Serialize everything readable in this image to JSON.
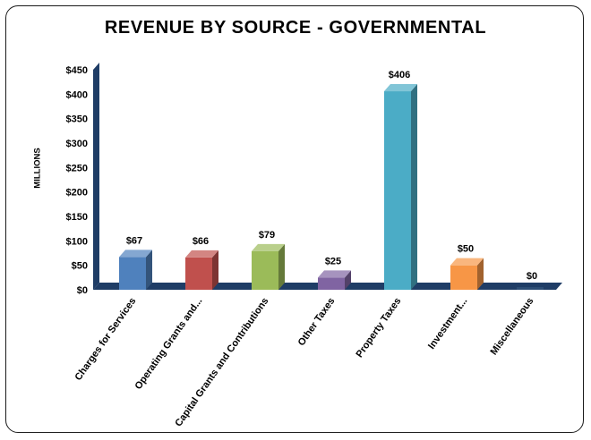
{
  "chart_data": {
    "type": "bar",
    "title": "REVENUE BY SOURCE - GOVERNMENTAL",
    "ylabel": "MILLIONS",
    "xlabel": "",
    "categories": [
      "Charges for Services",
      "Operating Grants and...",
      "Capital Grants and Contributions",
      "Other Taxes",
      "Property Taxes",
      "Investment...",
      "Miscellaneous"
    ],
    "values": [
      67,
      66,
      79,
      25,
      406,
      50,
      0
    ],
    "value_labels": [
      "$67",
      "$66",
      "$79",
      "$25",
      "$406",
      "$50",
      "$0"
    ],
    "colors": [
      "#4f81bd",
      "#c0504d",
      "#9bbb59",
      "#8064a2",
      "#4bacc6",
      "#f79646",
      "#2c4d75"
    ],
    "ylim": [
      0,
      450
    ],
    "yticks": [
      0,
      50,
      100,
      150,
      200,
      250,
      300,
      350,
      400,
      450
    ],
    "ytick_labels": [
      "$0",
      "$50",
      "$100",
      "$150",
      "$200",
      "$250",
      "$300",
      "$350",
      "$400",
      "$450"
    ],
    "grid": false,
    "legend": "none",
    "style": "3d-column",
    "axis_color": "#1f3d66"
  }
}
